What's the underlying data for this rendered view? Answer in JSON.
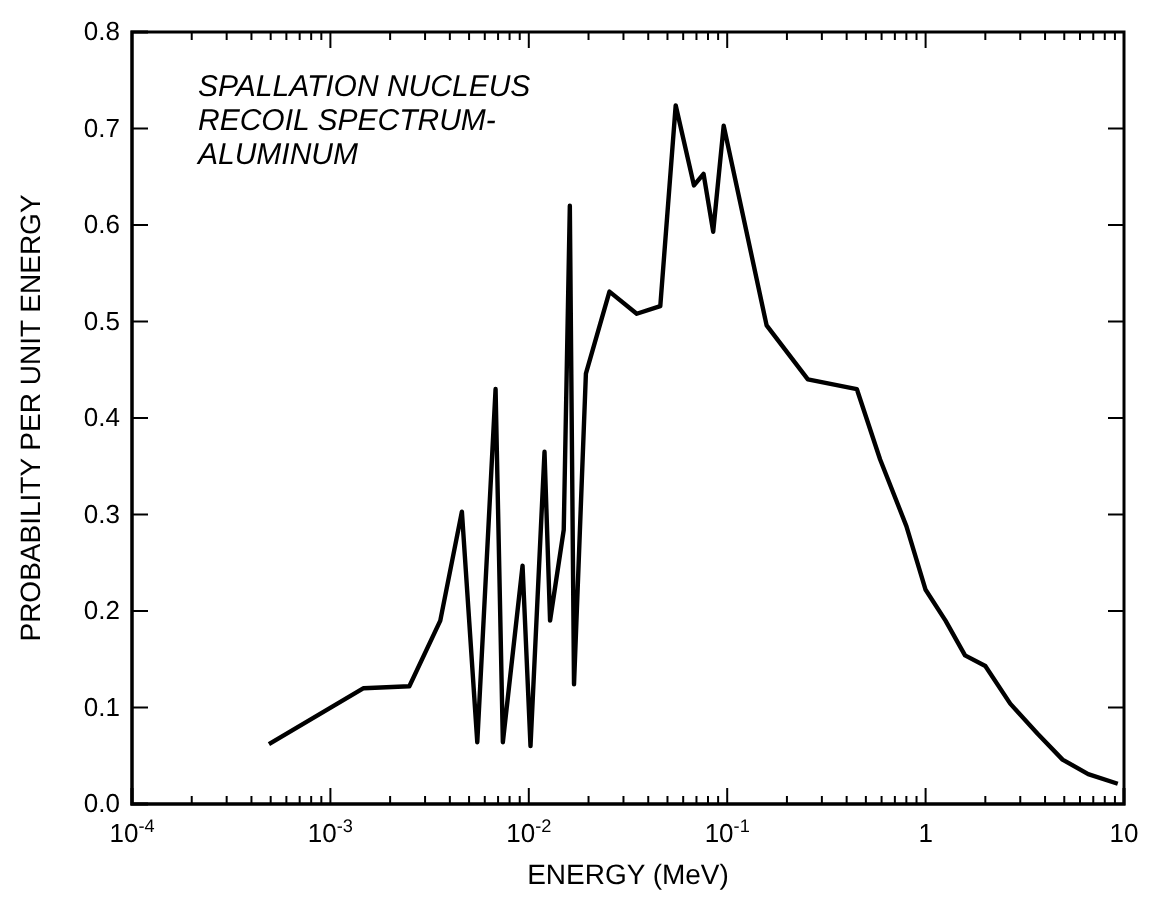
{
  "chart_data": {
    "type": "line",
    "title": "SPALLATION NUCLEUS\nRECOIL SPECTRUM-\nALUMINUM",
    "xlabel": "ENERGY (MeV)",
    "ylabel": "PROBABILITY PER UNIT ENERGY",
    "log": "x",
    "grid": false,
    "marker": "none",
    "line_style": "solid",
    "xlim": [
      0.0001,
      10
    ],
    "ylim": [
      0,
      0.8
    ],
    "xticks": [
      {
        "value": 0.0001,
        "label": "10$^{-4}$"
      },
      {
        "value": 0.001,
        "label": "10$^{-3}$"
      },
      {
        "value": 0.01,
        "label": "10$^{-2}$"
      },
      {
        "value": 0.1,
        "label": "10$^{-1}$"
      },
      1,
      10
    ],
    "yticks": [
      {
        "value": 0,
        "label": "0.0"
      },
      0.1,
      0.2,
      0.3,
      0.4,
      0.5,
      0.6,
      0.7,
      0.8
    ],
    "series": [
      {
        "color": "#000000",
        "x": [
          0.00049,
          0.00147,
          0.0025,
          0.00358,
          0.0046,
          0.0055,
          0.0068,
          0.0074,
          0.0093,
          0.0102,
          0.012,
          0.0128,
          0.015,
          0.0161,
          0.0169,
          0.0194,
          0.0255,
          0.035,
          0.046,
          0.055,
          0.068,
          0.076,
          0.085,
          0.096,
          0.158,
          0.255,
          0.45,
          0.59,
          0.8,
          1.0,
          1.26,
          1.58,
          2.0,
          2.67,
          3.66,
          4.9,
          6.6,
          9.3
        ],
        "values": [
          0.062,
          0.12,
          0.122,
          0.19,
          0.303,
          0.064,
          0.43,
          0.064,
          0.247,
          0.06,
          0.365,
          0.19,
          0.284,
          0.62,
          0.124,
          0.446,
          0.531,
          0.508,
          0.516,
          0.724,
          0.641,
          0.653,
          0.593,
          0.703,
          0.496,
          0.44,
          0.43,
          0.357,
          0.288,
          0.222,
          0.19,
          0.154,
          0.143,
          0.104,
          0.073,
          0.046,
          0.031,
          0.021
        ]
      }
    ]
  }
}
